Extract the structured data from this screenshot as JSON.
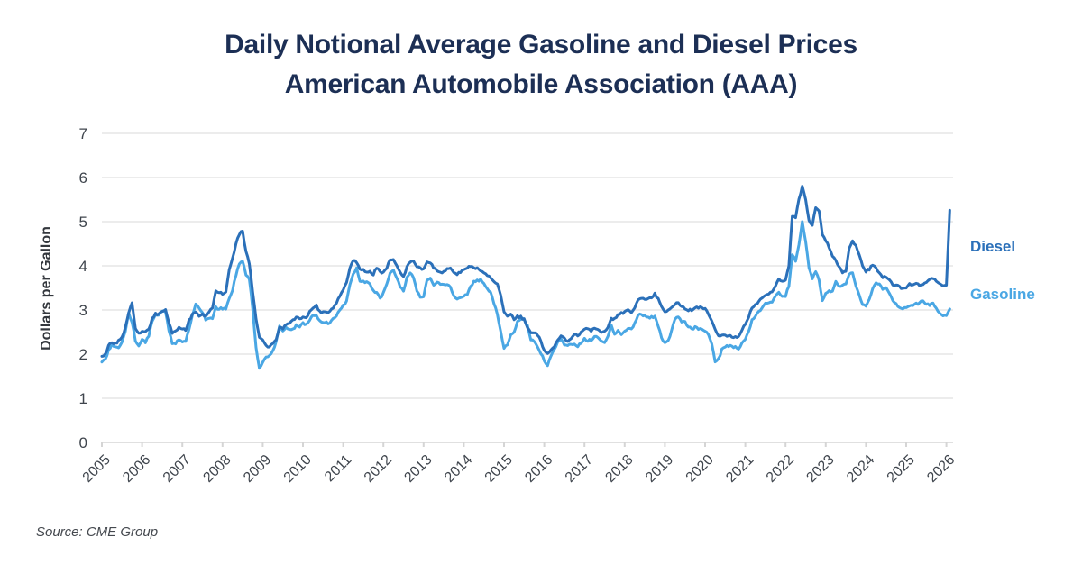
{
  "header": {
    "title_line1": "Daily Notional Average Gasoline and Diesel Prices",
    "title_line2": "American Automobile Association (AAA)"
  },
  "source": {
    "text": "Source: CME Group"
  },
  "colors": {
    "title_navy": "#1c2f55",
    "diesel_blue": "#2b70b9",
    "gasoline_blue": "#4aa7e4",
    "gridline_gray": "#ececec",
    "axis_text_gray": "#3f454d"
  },
  "chart_data": {
    "type": "line",
    "title": "Daily Notional Average Gasoline and Diesel Prices — American Automobile Association (AAA)",
    "xlabel": "",
    "ylabel": "Dollars per Gallon",
    "ylim": [
      0,
      7
    ],
    "y_ticks": [
      0,
      1,
      2,
      3,
      4,
      5,
      6,
      7
    ],
    "x_ticks": [
      2005,
      2006,
      2007,
      2008,
      2009,
      2010,
      2011,
      2012,
      2013,
      2014,
      2015,
      2016,
      2017,
      2018,
      2019,
      2020,
      2021,
      2022,
      2023,
      2024,
      2025,
      2026
    ],
    "grid": "horizontal-only",
    "legend_position": "right-outside",
    "x_start_year": 2005,
    "points_per_year": 12,
    "x_note": "values are monthly averages Jan 2005 through Jan 2026, plus one final early-Feb-2026 point (terminal spike in Diesel)",
    "series": [
      {
        "name": "Diesel",
        "color": "#2b70b9",
        "values": [
          1.95,
          2.0,
          2.18,
          2.28,
          2.24,
          2.3,
          2.4,
          2.6,
          2.92,
          3.15,
          2.58,
          2.46,
          2.52,
          2.5,
          2.58,
          2.8,
          2.92,
          2.9,
          2.96,
          3.0,
          2.72,
          2.46,
          2.52,
          2.62,
          2.58,
          2.55,
          2.76,
          2.9,
          2.95,
          2.86,
          2.9,
          2.86,
          2.96,
          3.06,
          3.42,
          3.4,
          3.36,
          3.42,
          3.92,
          4.18,
          4.5,
          4.72,
          4.78,
          4.32,
          4.06,
          3.42,
          2.78,
          2.38,
          2.3,
          2.2,
          2.16,
          2.24,
          2.34,
          2.6,
          2.56,
          2.68,
          2.7,
          2.76,
          2.86,
          2.8,
          2.86,
          2.84,
          2.96,
          3.06,
          3.1,
          2.96,
          2.94,
          2.96,
          2.96,
          3.06,
          3.16,
          3.32,
          3.46,
          3.62,
          3.96,
          4.12,
          4.08,
          3.94,
          3.9,
          3.88,
          3.88,
          3.8,
          3.96,
          3.86,
          3.86,
          3.96,
          4.14,
          4.14,
          4.02,
          3.84,
          3.76,
          3.96,
          4.1,
          4.1,
          4.0,
          3.94,
          3.92,
          4.1,
          4.08,
          3.94,
          3.9,
          3.86,
          3.86,
          3.94,
          3.96,
          3.86,
          3.82,
          3.86,
          3.9,
          3.96,
          4.0,
          3.96,
          3.94,
          3.9,
          3.86,
          3.8,
          3.74,
          3.66,
          3.6,
          3.34,
          2.94,
          2.86,
          2.9,
          2.8,
          2.86,
          2.84,
          2.78,
          2.6,
          2.46,
          2.5,
          2.44,
          2.28,
          2.1,
          2.0,
          2.1,
          2.16,
          2.3,
          2.4,
          2.36,
          2.3,
          2.36,
          2.46,
          2.42,
          2.5,
          2.56,
          2.56,
          2.54,
          2.6,
          2.56,
          2.5,
          2.5,
          2.62,
          2.8,
          2.8,
          2.9,
          2.92,
          2.96,
          3.0,
          2.96,
          3.06,
          3.24,
          3.26,
          3.22,
          3.24,
          3.28,
          3.36,
          3.26,
          3.1,
          2.96,
          3.0,
          3.06,
          3.12,
          3.16,
          3.1,
          3.04,
          3.0,
          3.0,
          3.04,
          3.06,
          3.04,
          3.04,
          2.9,
          2.74,
          2.54,
          2.4,
          2.42,
          2.44,
          2.42,
          2.4,
          2.38,
          2.42,
          2.56,
          2.66,
          2.82,
          3.06,
          3.12,
          3.18,
          3.26,
          3.34,
          3.36,
          3.4,
          3.56,
          3.72,
          3.64,
          3.66,
          4.02,
          5.12,
          5.08,
          5.52,
          5.8,
          5.5,
          5.02,
          4.92,
          5.3,
          5.22,
          4.72,
          4.58,
          4.4,
          4.24,
          4.12,
          3.96,
          3.86,
          3.88,
          4.38,
          4.56,
          4.44,
          4.24,
          4.0,
          3.88,
          3.92,
          4.02,
          3.96,
          3.82,
          3.72,
          3.76,
          3.68,
          3.58,
          3.56,
          3.52,
          3.48,
          3.52,
          3.58,
          3.56,
          3.6,
          3.54,
          3.56,
          3.64,
          3.68,
          3.72,
          3.64,
          3.58,
          3.54,
          3.58,
          5.25
        ]
      },
      {
        "name": "Gasoline",
        "color": "#4aa7e4",
        "values": [
          1.8,
          1.9,
          2.08,
          2.24,
          2.16,
          2.14,
          2.28,
          2.5,
          2.93,
          2.72,
          2.32,
          2.2,
          2.32,
          2.28,
          2.42,
          2.74,
          2.92,
          2.88,
          2.98,
          2.94,
          2.54,
          2.24,
          2.24,
          2.32,
          2.26,
          2.28,
          2.56,
          2.86,
          3.12,
          3.04,
          2.96,
          2.78,
          2.8,
          2.8,
          3.06,
          3.02,
          3.04,
          3.04,
          3.26,
          3.46,
          3.78,
          4.06,
          4.1,
          3.78,
          3.7,
          3.04,
          2.14,
          1.68,
          1.8,
          1.92,
          1.96,
          2.06,
          2.3,
          2.64,
          2.52,
          2.62,
          2.56,
          2.56,
          2.66,
          2.6,
          2.7,
          2.66,
          2.78,
          2.86,
          2.86,
          2.74,
          2.72,
          2.72,
          2.7,
          2.8,
          2.86,
          3.0,
          3.1,
          3.18,
          3.56,
          3.82,
          3.94,
          3.66,
          3.64,
          3.62,
          3.6,
          3.44,
          3.38,
          3.26,
          3.38,
          3.58,
          3.84,
          3.9,
          3.72,
          3.54,
          3.44,
          3.72,
          3.84,
          3.74,
          3.44,
          3.3,
          3.32,
          3.66,
          3.7,
          3.56,
          3.62,
          3.6,
          3.56,
          3.56,
          3.52,
          3.34,
          3.24,
          3.28,
          3.32,
          3.36,
          3.52,
          3.66,
          3.66,
          3.68,
          3.6,
          3.48,
          3.4,
          3.16,
          2.9,
          2.54,
          2.12,
          2.22,
          2.46,
          2.48,
          2.72,
          2.8,
          2.78,
          2.64,
          2.34,
          2.28,
          2.16,
          2.02,
          1.86,
          1.72,
          1.96,
          2.12,
          2.26,
          2.36,
          2.22,
          2.18,
          2.22,
          2.24,
          2.18,
          2.26,
          2.34,
          2.3,
          2.32,
          2.42,
          2.38,
          2.3,
          2.28,
          2.38,
          2.64,
          2.46,
          2.54,
          2.46,
          2.54,
          2.58,
          2.56,
          2.7,
          2.9,
          2.9,
          2.86,
          2.84,
          2.84,
          2.86,
          2.64,
          2.38,
          2.26,
          2.32,
          2.52,
          2.8,
          2.86,
          2.74,
          2.74,
          2.62,
          2.56,
          2.62,
          2.58,
          2.56,
          2.54,
          2.44,
          2.24,
          1.84,
          1.88,
          2.1,
          2.18,
          2.18,
          2.18,
          2.16,
          2.12,
          2.24,
          2.34,
          2.5,
          2.8,
          2.86,
          2.96,
          3.06,
          3.14,
          3.16,
          3.18,
          3.3,
          3.4,
          3.3,
          3.32,
          3.54,
          4.24,
          4.12,
          4.5,
          5.0,
          4.54,
          3.94,
          3.72,
          3.88,
          3.68,
          3.2,
          3.4,
          3.42,
          3.44,
          3.64,
          3.54,
          3.56,
          3.58,
          3.82,
          3.84,
          3.54,
          3.32,
          3.12,
          3.1,
          3.24,
          3.5,
          3.62,
          3.6,
          3.46,
          3.5,
          3.38,
          3.2,
          3.14,
          3.06,
          3.02,
          3.06,
          3.1,
          3.1,
          3.14,
          3.16,
          3.2,
          3.14,
          3.12,
          3.16,
          3.04,
          2.94,
          2.86,
          2.88,
          3.0
        ]
      }
    ]
  }
}
